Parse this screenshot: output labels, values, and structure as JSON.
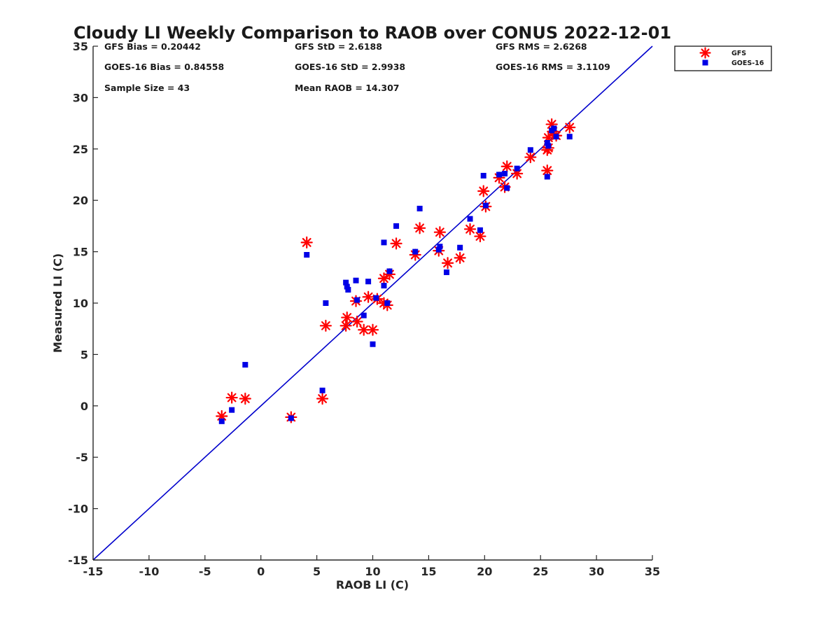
{
  "chart_data": {
    "type": "scatter",
    "title": "Cloudy LI Weekly Comparison to RAOB over CONUS 2022-12-01",
    "xlabel": "RAOB LI (C)",
    "ylabel": "Measured LI (C)",
    "xlim": [
      -15,
      35
    ],
    "ylim": [
      -15,
      35
    ],
    "x_ticks": [
      -15,
      -10,
      -5,
      0,
      5,
      10,
      15,
      20,
      25,
      30,
      35
    ],
    "y_ticks": [
      -15,
      -10,
      -5,
      0,
      5,
      10,
      15,
      20,
      25,
      30,
      35
    ],
    "grid": false,
    "legend_position": "top-right, outside plot",
    "reference_line": {
      "type": "one-to-one",
      "from": [
        -15,
        -15
      ],
      "to": [
        35,
        35
      ],
      "color": "#0000cc"
    },
    "stats": {
      "gfs_bias": "GFS Bias = 0.20442",
      "gfs_std": "GFS StD = 2.6188",
      "gfs_rms": "GFS RMS = 2.6268",
      "goes_bias": "GOES-16 Bias = 0.84558",
      "goes_std": "GOES-16 StD = 2.9938",
      "goes_rms": "GOES-16 RMS = 3.1109",
      "sample_size": "Sample Size = 43",
      "mean_raob": "Mean RAOB = 14.307"
    },
    "series": [
      {
        "name": "GFS",
        "marker": "asterisk",
        "color": "#ff0000",
        "points": [
          [
            -3.5,
            -1.0
          ],
          [
            -2.6,
            0.8
          ],
          [
            -1.4,
            0.7
          ],
          [
            2.7,
            -1.1
          ],
          [
            4.1,
            15.9
          ],
          [
            5.5,
            0.7
          ],
          [
            5.8,
            7.8
          ],
          [
            7.6,
            7.8
          ],
          [
            7.7,
            8.6
          ],
          [
            8.5,
            10.2
          ],
          [
            8.6,
            8.2
          ],
          [
            9.2,
            7.4
          ],
          [
            9.6,
            10.6
          ],
          [
            10.0,
            7.4
          ],
          [
            10.4,
            10.4
          ],
          [
            11.0,
            10.0
          ],
          [
            11.0,
            12.4
          ],
          [
            11.3,
            9.8
          ],
          [
            11.5,
            12.8
          ],
          [
            12.1,
            15.8
          ],
          [
            13.8,
            14.7
          ],
          [
            14.2,
            17.3
          ],
          [
            15.9,
            15.1
          ],
          [
            16.0,
            16.9
          ],
          [
            16.7,
            13.9
          ],
          [
            17.8,
            14.4
          ],
          [
            18.7,
            17.2
          ],
          [
            19.6,
            16.5
          ],
          [
            19.9,
            20.9
          ],
          [
            20.1,
            19.4
          ],
          [
            21.3,
            22.2
          ],
          [
            21.8,
            21.3
          ],
          [
            22.0,
            23.3
          ],
          [
            22.9,
            22.6
          ],
          [
            24.1,
            24.2
          ],
          [
            25.6,
            22.9
          ],
          [
            25.6,
            24.9
          ],
          [
            25.7,
            26.1
          ],
          [
            26.0,
            27.4
          ],
          [
            26.1,
            26.7
          ],
          [
            26.4,
            26.3
          ],
          [
            27.6,
            27.1
          ],
          [
            25.7,
            25.1
          ]
        ]
      },
      {
        "name": "GOES-16",
        "marker": "square",
        "color": "#0000e6",
        "points": [
          [
            -3.5,
            -1.5
          ],
          [
            -2.6,
            -0.4
          ],
          [
            -1.4,
            4.0
          ],
          [
            2.7,
            -1.2
          ],
          [
            4.1,
            14.7
          ],
          [
            5.5,
            1.5
          ],
          [
            5.8,
            10.0
          ],
          [
            7.6,
            12.0
          ],
          [
            7.7,
            11.6
          ],
          [
            7.8,
            11.3
          ],
          [
            8.5,
            12.2
          ],
          [
            8.6,
            10.3
          ],
          [
            9.2,
            8.8
          ],
          [
            9.6,
            12.1
          ],
          [
            10.0,
            6.0
          ],
          [
            10.3,
            10.5
          ],
          [
            11.0,
            11.7
          ],
          [
            11.0,
            15.9
          ],
          [
            11.3,
            10.0
          ],
          [
            11.5,
            13.1
          ],
          [
            12.1,
            17.5
          ],
          [
            13.8,
            15.0
          ],
          [
            14.2,
            19.2
          ],
          [
            15.9,
            15.2
          ],
          [
            16.0,
            15.5
          ],
          [
            16.6,
            13.0
          ],
          [
            17.8,
            15.4
          ],
          [
            18.7,
            18.2
          ],
          [
            19.6,
            17.1
          ],
          [
            19.9,
            22.4
          ],
          [
            20.1,
            19.5
          ],
          [
            21.3,
            22.5
          ],
          [
            21.8,
            22.6
          ],
          [
            22.0,
            21.2
          ],
          [
            22.9,
            23.1
          ],
          [
            24.1,
            24.9
          ],
          [
            25.6,
            22.3
          ],
          [
            25.6,
            25.6
          ],
          [
            25.7,
            25.3
          ],
          [
            26.0,
            26.8
          ],
          [
            26.2,
            27.0
          ],
          [
            26.4,
            26.2
          ],
          [
            27.6,
            26.2
          ]
        ]
      }
    ]
  }
}
